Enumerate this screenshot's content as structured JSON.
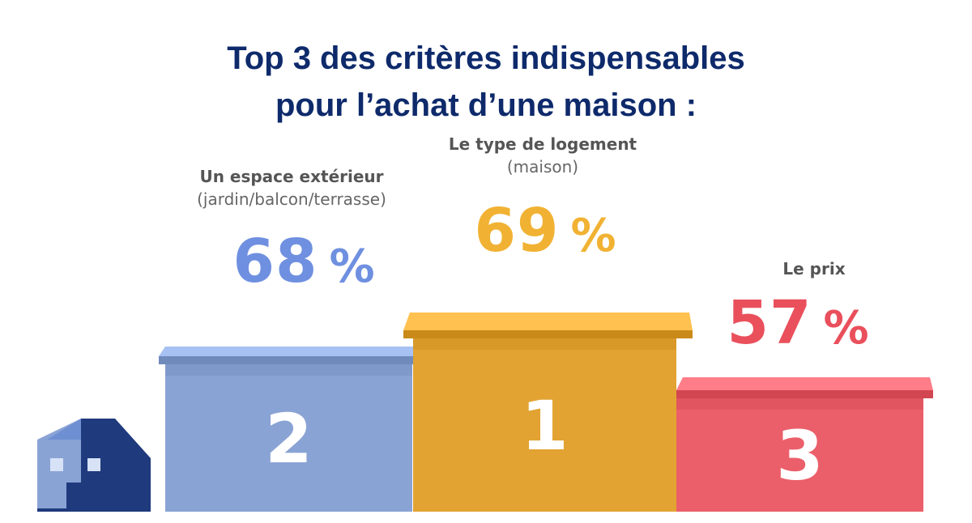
{
  "title_lines": [
    "Top 3 des critères indispensables",
    "pour l’achat d’une maison :"
  ],
  "colors": {
    "title": "#0e2a6b",
    "series": [
      "#8aa3d5",
      "#e2a332",
      "#eb5f6a"
    ],
    "percent_text": [
      "#6f90e0",
      "#f1b233",
      "#e9505c"
    ],
    "house": "#1f3a7d"
  },
  "chart_data": {
    "type": "bar",
    "categories": [
      {
        "label": "Un espace extérieur",
        "sub": "(jardin/balcon/terrasse)",
        "rank": "2",
        "value": 68,
        "display": "68",
        "unit": "%"
      },
      {
        "label": "Le type de logement",
        "sub": "(maison)",
        "rank": "1",
        "value": 69,
        "display": "69",
        "unit": "%"
      },
      {
        "label": "Le prix",
        "sub": "",
        "rank": "3",
        "value": 57,
        "display": "57",
        "unit": "%"
      }
    ],
    "title": "Top 3 des critères indispensables pour l’achat d’une maison :",
    "xlabel": "",
    "ylabel": "",
    "ylim": [
      0,
      100
    ],
    "grid": false,
    "legend": "none"
  },
  "icons": [
    "house-icon"
  ]
}
